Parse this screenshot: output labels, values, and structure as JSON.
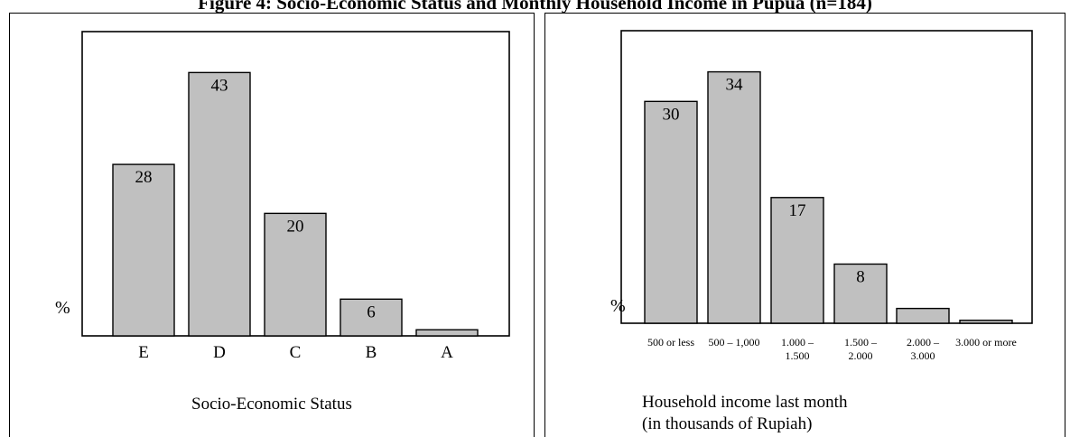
{
  "figure": {
    "title": "Figure 4: Socio-Economic Status and Monthly Household Income in Pupua (n=184)"
  },
  "chart_data": [
    {
      "type": "bar",
      "categories": [
        "E",
        "D",
        "C",
        "B",
        "A"
      ],
      "values": [
        28,
        43,
        20,
        6,
        1
      ],
      "data_labels": [
        "28",
        "43",
        "20",
        "6",
        ""
      ],
      "ylabel": "%",
      "xlabel": "Socio-Economic Status",
      "ylim": [
        0,
        46
      ],
      "bar_color": "#c0c0c0",
      "grid": false
    },
    {
      "type": "bar",
      "categories": [
        "500 or less",
        "500 – 1,000",
        "1.000 – 1.500",
        "1.500 – 2.000",
        "2.000 – 3.000",
        "3.000 or more"
      ],
      "category_lines": [
        [
          "500 or less"
        ],
        [
          "500 – 1,000"
        ],
        [
          "1.000 –",
          "1.500"
        ],
        [
          "1.500 –",
          "2.000"
        ],
        [
          "2.000 –",
          "3.000"
        ],
        [
          "3.000 or more"
        ]
      ],
      "values": [
        30,
        34,
        17,
        8,
        2,
        0.4
      ],
      "data_labels": [
        "30",
        "34",
        "17",
        "8",
        "",
        ""
      ],
      "ylabel": "%",
      "xlabel": [
        "Household income last month",
        "(in thousands of Rupiah)"
      ],
      "ylim": [
        0,
        37
      ],
      "bar_color": "#c0c0c0",
      "grid": false
    }
  ]
}
